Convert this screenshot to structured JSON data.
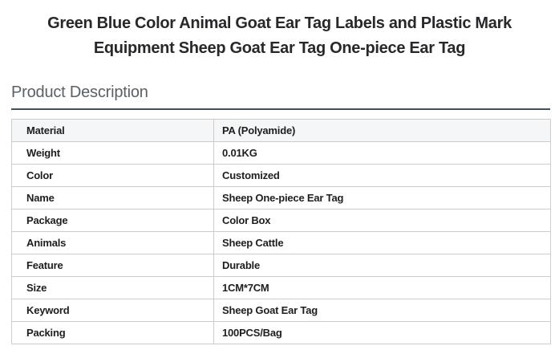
{
  "header": {
    "title_lines": [
      "Green Blue Color Animal Goat Ear Tag Labels and Plastic Mark",
      "Equipment Sheep Goat Ear Tag One-piece Ear Tag"
    ]
  },
  "section": {
    "heading": "Product Description"
  },
  "spec_table": {
    "rows": [
      {
        "label": "Material",
        "value": "PA (Polyamide)"
      },
      {
        "label": "Weight",
        "value": "0.01KG"
      },
      {
        "label": "Color",
        "value": "Customized"
      },
      {
        "label": "Name",
        "value": "Sheep One-piece Ear Tag"
      },
      {
        "label": "Package",
        "value": "Color Box"
      },
      {
        "label": "Animals",
        "value": "Sheep Cattle"
      },
      {
        "label": "Feature",
        "value": "Durable"
      },
      {
        "label": "Size",
        "value": "1CM*7CM"
      },
      {
        "label": "Keyword",
        "value": "Sheep Goat Ear Tag"
      },
      {
        "label": "Packing",
        "value": "100PCS/Bag"
      }
    ]
  },
  "colors": {
    "title_text": "#26282b",
    "heading_text": "#5a6066",
    "heading_underline": "#45525c",
    "table_border": "#cccccc",
    "header_row_bg": "#f5f6f7",
    "cell_text": "#1e1e1e"
  }
}
